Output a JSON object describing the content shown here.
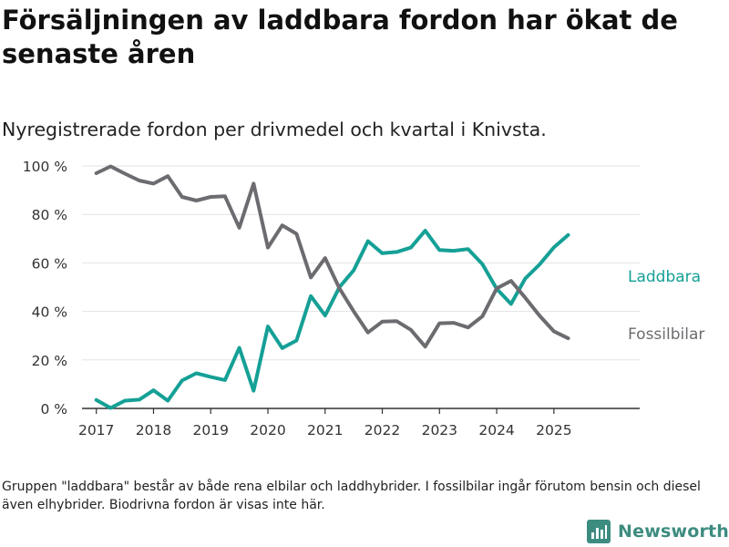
{
  "header": {
    "title": "Försäljningen av laddbara fordon har ökat de senaste åren",
    "subtitle": "Nyregistrerade fordon per drivmedel och kvartal i Knivsta."
  },
  "footer": {
    "note": "Gruppen \"laddbara\" består av både rena elbilar och laddhybrider. I fossilbilar ingår förutom bensin och diesel även elhybrider. Biodrivna fordon är visas inte här.",
    "brand": "Newsworthy",
    "brand_icon": "bar-chart-logo-icon"
  },
  "colors": {
    "laddbara": "#15a096",
    "fossilbilar": "#6d6b70",
    "grid": "#e3e3e3",
    "axis": "#333333",
    "brand": "#3d8c80"
  },
  "chart_data": {
    "type": "line",
    "title": "Försäljningen av laddbara fordon har ökat de senaste åren",
    "subtitle": "Nyregistrerade fordon per drivmedel och kvartal i Knivsta.",
    "xlabel": "",
    "ylabel": "",
    "ylim": [
      0,
      100
    ],
    "xlim": [
      2016.75,
      2026.5
    ],
    "yticks": [
      0,
      20,
      40,
      60,
      80,
      100
    ],
    "ytick_labels": [
      "0 %",
      "20 %",
      "40 %",
      "60 %",
      "80 %",
      "100 %"
    ],
    "xticks": [
      2017,
      2018,
      2019,
      2020,
      2021,
      2022,
      2023,
      2024,
      2025
    ],
    "xtick_labels": [
      "2017",
      "2018",
      "2019",
      "2020",
      "2021",
      "2022",
      "2023",
      "2024",
      "2025"
    ],
    "grid": true,
    "legend": "direct-labels-right",
    "x": [
      "2017-Q1",
      "2017-Q2",
      "2017-Q3",
      "2017-Q4",
      "2018-Q1",
      "2018-Q2",
      "2018-Q3",
      "2018-Q4",
      "2019-Q1",
      "2019-Q2",
      "2019-Q3",
      "2019-Q4",
      "2020-Q1",
      "2020-Q2",
      "2020-Q3",
      "2020-Q4",
      "2021-Q1",
      "2021-Q2",
      "2021-Q3",
      "2021-Q4",
      "2022-Q1",
      "2022-Q2",
      "2022-Q3",
      "2022-Q4",
      "2023-Q1",
      "2023-Q2",
      "2023-Q3",
      "2023-Q4",
      "2024-Q1",
      "2024-Q2",
      "2024-Q3",
      "2024-Q4",
      "2025-Q1",
      "2025-Q2"
    ],
    "series": [
      {
        "name": "Laddbara",
        "color": "#15a096",
        "values": [
          3.5,
          0.2,
          3.2,
          3.6,
          7.5,
          3.2,
          11.5,
          14.5,
          13,
          11.7,
          25,
          7.3,
          33.8,
          24.9,
          28,
          46.3,
          38.3,
          50,
          57,
          69,
          64,
          64.5,
          66.3,
          73.3,
          65.3,
          65,
          65.7,
          59.5,
          49.3,
          43.1,
          53.6,
          59.4,
          66.4,
          71.5
        ]
      },
      {
        "name": "Fossilbilar",
        "color": "#6d6b70",
        "values": [
          97,
          99.8,
          96.8,
          94,
          92.7,
          95.8,
          87.2,
          85.7,
          87.2,
          87.5,
          74.5,
          92.7,
          66.3,
          75.5,
          72,
          54,
          62,
          49.5,
          40,
          31.3,
          35.8,
          36,
          32.4,
          25.5,
          35.1,
          35.3,
          33.4,
          38,
          49.5,
          52.6,
          45.6,
          38.2,
          31.8,
          28.9
        ]
      }
    ]
  }
}
